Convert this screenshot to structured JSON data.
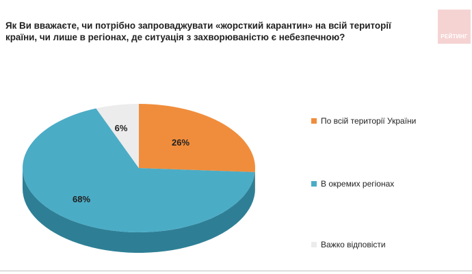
{
  "title": "Як Ви вважаєте, чи потрібно запроваджувати «жорсткий карантин» на всій території країни, чи лише в регіонах, де ситуація з захворюваністю є небезпечною?",
  "logo_text": "РЕЙТИНГ",
  "chart_data": {
    "type": "pie",
    "title": "Як Ви вважаєте, чи потрібно запроваджувати «жорсткий карантин» на всій території країни, чи лише в регіонах, де ситуація з захворюваністю є небезпечною?",
    "legend_position": "right",
    "slices": [
      {
        "label": "По всій території України",
        "value": 26,
        "label_text": "26%",
        "color": "#f08d3c",
        "side_color": "#c06a25"
      },
      {
        "label": "В окремих регіонах",
        "value": 68,
        "label_text": "68%",
        "color": "#4bacc6",
        "side_color": "#2e7f95"
      },
      {
        "label": "Важко відповісти",
        "value": 6,
        "label_text": "6%",
        "color": "#ececec",
        "side_color": "#bdbdbd"
      }
    ]
  }
}
